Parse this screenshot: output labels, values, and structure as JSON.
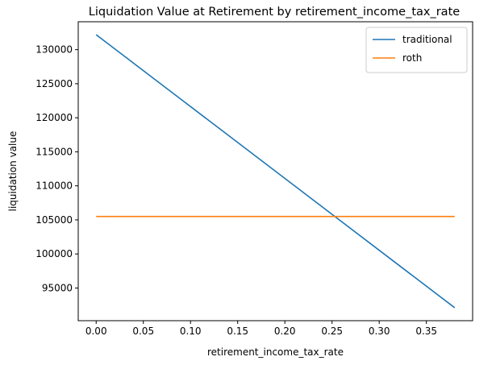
{
  "chart_data": {
    "type": "line",
    "title": "Liquidation Value at Retirement by retirement_income_tax_rate",
    "xlabel": "retirement_income_tax_rate",
    "ylabel": "liquidation value",
    "xlim": [
      -0.019,
      0.399
    ],
    "ylim": [
      90200,
      134100
    ],
    "xticks": [
      0.0,
      0.05,
      0.1,
      0.15,
      0.2,
      0.25,
      0.3,
      0.35
    ],
    "xtick_labels": [
      "0.00",
      "0.05",
      "0.10",
      "0.15",
      "0.20",
      "0.25",
      "0.30",
      "0.35"
    ],
    "yticks": [
      95000,
      100000,
      105000,
      110000,
      115000,
      120000,
      125000,
      130000
    ],
    "ytick_labels": [
      "95000",
      "100000",
      "105000",
      "110000",
      "115000",
      "120000",
      "125000",
      "130000"
    ],
    "grid": false,
    "legend_position": "top-right",
    "x": [
      0.0,
      0.38
    ],
    "series": [
      {
        "name": "traditional",
        "color": "#1f77b4",
        "values": [
          132200,
          92100
        ]
      },
      {
        "name": "roth",
        "color": "#ff7f0e",
        "values": [
          105500,
          105500
        ]
      }
    ]
  }
}
